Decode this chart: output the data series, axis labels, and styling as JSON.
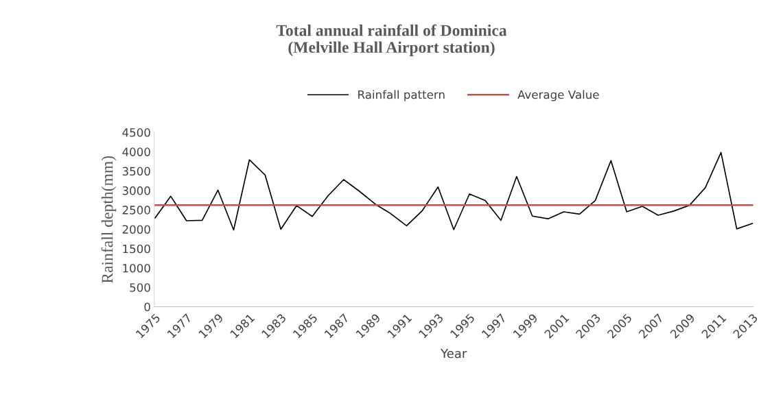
{
  "chart_data": {
    "type": "line",
    "title": "Total annual rainfall of Dominica\n(Melville Hall Airport station)",
    "xlabel": "Year",
    "ylabel": "Rainfall depth(mm)",
    "categories": [
      "1975",
      null,
      "1977",
      null,
      "1979",
      null,
      "1981",
      null,
      "1983",
      null,
      "1985",
      null,
      "1987",
      null,
      "1989",
      null,
      "1991",
      null,
      "1993",
      null,
      "1995",
      null,
      "1997",
      null,
      "1999",
      null,
      "2001",
      null,
      "2003",
      null,
      "2005",
      null,
      "2007",
      null,
      "2009",
      null,
      "2011",
      null,
      "2013"
    ],
    "series": [
      {
        "name": "Rainfall pattern",
        "color": "#000000",
        "values": [
          2290,
          2850,
          2220,
          2230,
          3010,
          1980,
          3790,
          3400,
          2000,
          2610,
          2330,
          2860,
          3280,
          2980,
          2650,
          2400,
          2090,
          2480,
          3090,
          1990,
          2910,
          2740,
          2230,
          3360,
          2340,
          2270,
          2450,
          2390,
          2740,
          3770,
          2450,
          2590,
          2360,
          2470,
          2620,
          3070,
          3980,
          2010,
          2150
        ]
      }
    ],
    "ref_lines": [
      {
        "axis": "y",
        "value": 2620,
        "label": "Average Value",
        "color": "#c0504d"
      }
    ],
    "ylim": [
      0,
      4500
    ],
    "yticks": [
      0,
      500,
      1000,
      1500,
      2000,
      2500,
      3000,
      3500,
      4000,
      4500
    ],
    "grid": false,
    "legend": "top",
    "marker": "none",
    "line_style": "solid"
  }
}
